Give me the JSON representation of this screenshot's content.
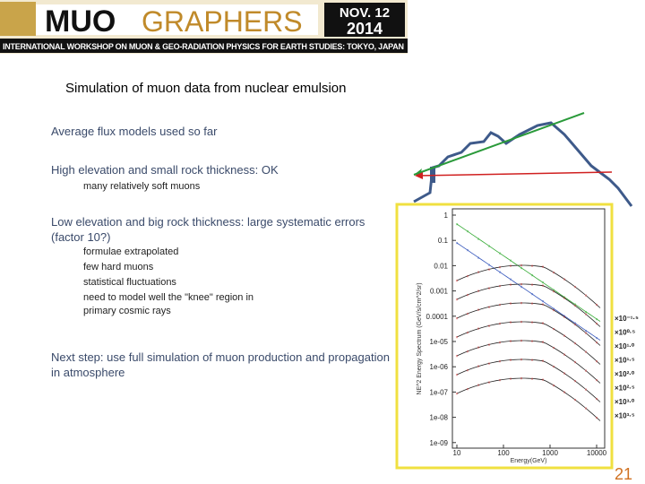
{
  "header": {
    "logo_left": "MUO",
    "logo_right": "GRAPHERS",
    "date_line1": "NOV. 12",
    "date_line2": "2014",
    "subtitle": "INTERNATIONAL WORKSHOP ON MUON & GEO-RADIATION PHYSICS FOR EARTH STUDIES: TOKYO, JAPAN"
  },
  "slide": {
    "title": "Simulation of muon data from nuclear emulsion",
    "bullets": [
      {
        "text": "Average flux models used so far",
        "items": []
      },
      {
        "text": "High elevation and small rock thickness: OK",
        "items": [
          "many relatively soft muons"
        ]
      },
      {
        "text": "Low elevation and big rock thickness: large systematic errors (factor 10?)",
        "items": [
          "formulae extrapolated",
          "few hard muons",
          "statistical fluctuations",
          "need to model well the \"knee\" region in primary cosmic rays"
        ]
      },
      {
        "text": "Next step: use full simulation of muon production and propagation in atmosphere",
        "items": []
      }
    ],
    "page_number": "21"
  },
  "figure": {
    "y_axis_label": "NE^2 Energy Spectrum (GeV/s/cm^2/sr)",
    "x_axis_label": "Energy(GeV)",
    "y_tick_labels": [
      "1",
      "0.1",
      "0.01",
      "0.001",
      "0.0001",
      "1e-05",
      "1e-06",
      "1e-07",
      "1e-08",
      "1e-09"
    ],
    "x_tick_labels": [
      "10",
      "100",
      "1000",
      "10000"
    ],
    "scale_labels": [
      "×10⁻¹·⁵",
      "×10⁰·⁵",
      "×10¹·⁰",
      "×10¹·⁵",
      "×10²·⁰",
      "×10²·⁵",
      "×10³·⁰",
      "×10³·⁵"
    ]
  }
}
